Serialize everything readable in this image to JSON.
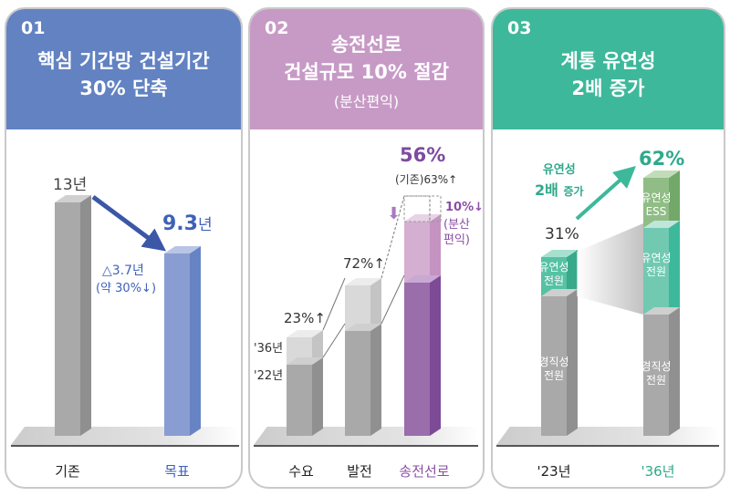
{
  "panels": [
    {
      "number": "01",
      "title_line1": "핵심 기간망 건설기간",
      "title_line2": "30% 단축",
      "color": "#6282c2"
    },
    {
      "number": "02",
      "title_line1": "송전선로",
      "title_line2": "건설규모 10% 절감",
      "subtitle": "(분산편익)",
      "color": "#c79ac6"
    },
    {
      "number": "03",
      "title_line1": "계통 유연성",
      "title_line2": "2배 증가",
      "color": "#3db89b"
    }
  ],
  "chart_data": [
    {
      "type": "bar",
      "categories": [
        "기존",
        "목표"
      ],
      "values": [
        13,
        9.3
      ],
      "unit": "년",
      "labels": {
        "base": "13년",
        "target_value": "9.3",
        "target_unit": "년",
        "delta": "△3.7년",
        "delta_pct": "(약 30%↓)"
      }
    },
    {
      "type": "bar",
      "categories": [
        "수요",
        "발전",
        "송전선로"
      ],
      "series": [
        {
          "name": "'22년"
        },
        {
          "name": "'36년"
        }
      ],
      "growth": [
        23,
        72,
        56
      ],
      "labels": {
        "year1": "'22년",
        "year2": "'36년",
        "demand": "23%↑",
        "gen": "72%↑",
        "line": "56%",
        "line_base": "(기존)63%↑",
        "reduction": "10%↓",
        "reduction_note1": "(분산",
        "reduction_note2": "편익)"
      }
    },
    {
      "type": "bar",
      "stacked": true,
      "categories": [
        "'23년",
        "'36년"
      ],
      "series": [
        {
          "name": "경직성 전원"
        },
        {
          "name": "유연성 전원"
        },
        {
          "name": "유연성 ESS"
        }
      ],
      "totals_flexible_pct": [
        31,
        62
      ],
      "labels": {
        "v1": "31%",
        "v2": "62%",
        "growth1": "유연성",
        "growth2a": "2배",
        "growth2b": "증가",
        "rigid1": "경직성",
        "rigid2": "전원",
        "flex1": "유연성",
        "flex2": "전원",
        "ess1": "유연성",
        "ess2": "ESS"
      }
    }
  ]
}
